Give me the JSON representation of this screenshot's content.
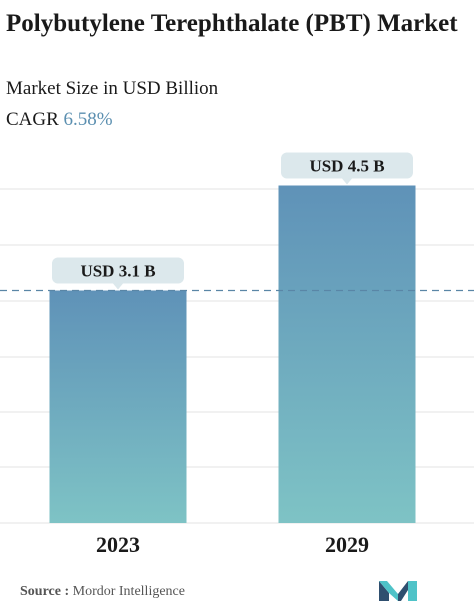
{
  "title": "Polybutylene Terephthalate (PBT) Market",
  "subtitle": "Market Size in USD Billion",
  "cagr": {
    "label": "CAGR",
    "value": "6.58%"
  },
  "source": {
    "label": "Source :",
    "name": "Mordor Intelligence"
  },
  "colors": {
    "bar_top": "#5f92b8",
    "bar_bottom": "#7ec3c5",
    "label_bg": "#dce8ec",
    "dashed_line": "#5a86a6",
    "grid": "#e3e3e3",
    "logo_dark": "#2f4f6f",
    "logo_teal": "#4fc3c8"
  },
  "chart_data": {
    "type": "bar",
    "categories": [
      "2023",
      "2029"
    ],
    "values": [
      3.1,
      4.5
    ],
    "value_labels": [
      "USD 3.1 B",
      "USD 4.5 B"
    ],
    "ylim": [
      0,
      5.2
    ],
    "grid": true,
    "reference_line": {
      "value": 3.1,
      "style": "dashed"
    }
  }
}
